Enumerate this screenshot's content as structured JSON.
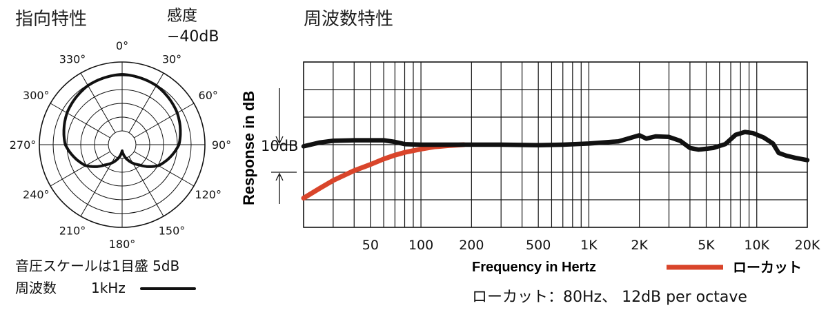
{
  "polar": {
    "title": "指向特性",
    "sensitivity_label": "感度",
    "sensitivity_value": "−40dB",
    "angle_labels": [
      "0°",
      "30°",
      "60°",
      "90°",
      "120°",
      "150°",
      "180°",
      "210°",
      "240°",
      "270°",
      "300°",
      "330°"
    ],
    "scale_note": "音圧スケールは1目盛 5dB",
    "legend_prefix": "周波数",
    "legend_freq": "1kHz",
    "ring_count": 5,
    "response_normalized": [
      [
        0,
        1.0
      ],
      [
        30,
        0.97
      ],
      [
        60,
        0.9
      ],
      [
        90,
        0.8
      ],
      [
        120,
        0.58
      ],
      [
        140,
        0.35
      ],
      [
        160,
        0.2
      ],
      [
        180,
        0.05
      ],
      [
        200,
        0.2
      ],
      [
        220,
        0.35
      ],
      [
        240,
        0.58
      ],
      [
        270,
        0.8
      ],
      [
        300,
        0.9
      ],
      [
        330,
        0.97
      ],
      [
        360,
        1.0
      ]
    ],
    "line_color": "#111111"
  },
  "freq": {
    "title": "周波数特性",
    "ylabel": "Response in dB",
    "xlabel": "Frequency in Hertz",
    "scale_marker": "10dB",
    "note": "ローカット：80Hz、 12dB per octave",
    "lowcut_label": "ローカット",
    "lowcut_color": "#d9452b",
    "response_color": "#111111"
  },
  "chart_data": {
    "type": "line",
    "title": "周波数特性",
    "xlabel": "Frequency in Hertz",
    "ylabel": "Response in dB",
    "xscale": "log",
    "xlim": [
      20,
      20000
    ],
    "ylim": [
      -15,
      15
    ],
    "y_grid_step_db": 5,
    "grid": true,
    "x_tick_labels": [
      {
        "v": 50,
        "t": "50"
      },
      {
        "v": 100,
        "t": "100"
      },
      {
        "v": 200,
        "t": "200"
      },
      {
        "v": 500,
        "t": "500"
      },
      {
        "v": 1000,
        "t": "1K"
      },
      {
        "v": 2000,
        "t": "2K"
      },
      {
        "v": 5000,
        "t": "5K"
      },
      {
        "v": 10000,
        "t": "10K"
      },
      {
        "v": 20000,
        "t": "20K"
      }
    ],
    "series": [
      {
        "name": "",
        "color": "#111111",
        "points": [
          [
            20,
            -0.3
          ],
          [
            25,
            0.4
          ],
          [
            30,
            0.7
          ],
          [
            40,
            0.8
          ],
          [
            60,
            0.8
          ],
          [
            70,
            0.5
          ],
          [
            80,
            0.1
          ],
          [
            100,
            0.0
          ],
          [
            200,
            0.0
          ],
          [
            300,
            0.0
          ],
          [
            500,
            -0.1
          ],
          [
            700,
            0.0
          ],
          [
            1000,
            0.2
          ],
          [
            1500,
            0.6
          ],
          [
            1800,
            1.3
          ],
          [
            2000,
            1.7
          ],
          [
            2200,
            1.1
          ],
          [
            2500,
            1.5
          ],
          [
            3000,
            1.4
          ],
          [
            3500,
            0.7
          ],
          [
            4000,
            -0.6
          ],
          [
            4500,
            -0.9
          ],
          [
            5500,
            -0.6
          ],
          [
            6500,
            0.1
          ],
          [
            7500,
            1.8
          ],
          [
            8500,
            2.3
          ],
          [
            9500,
            2.1
          ],
          [
            11000,
            1.3
          ],
          [
            12500,
            0.2
          ],
          [
            13500,
            -1.5
          ],
          [
            15000,
            -2.0
          ],
          [
            17000,
            -2.4
          ],
          [
            20000,
            -2.8
          ]
        ]
      },
      {
        "name": "ローカット",
        "color": "#d9452b",
        "points": [
          [
            20,
            -9.7
          ],
          [
            25,
            -7.9
          ],
          [
            30,
            -6.5
          ],
          [
            40,
            -4.7
          ],
          [
            50,
            -3.6
          ],
          [
            60,
            -2.6
          ],
          [
            70,
            -1.9
          ],
          [
            80,
            -1.4
          ],
          [
            100,
            -0.8
          ],
          [
            120,
            -0.4
          ],
          [
            150,
            -0.15
          ],
          [
            180,
            0.0
          ]
        ]
      }
    ]
  }
}
